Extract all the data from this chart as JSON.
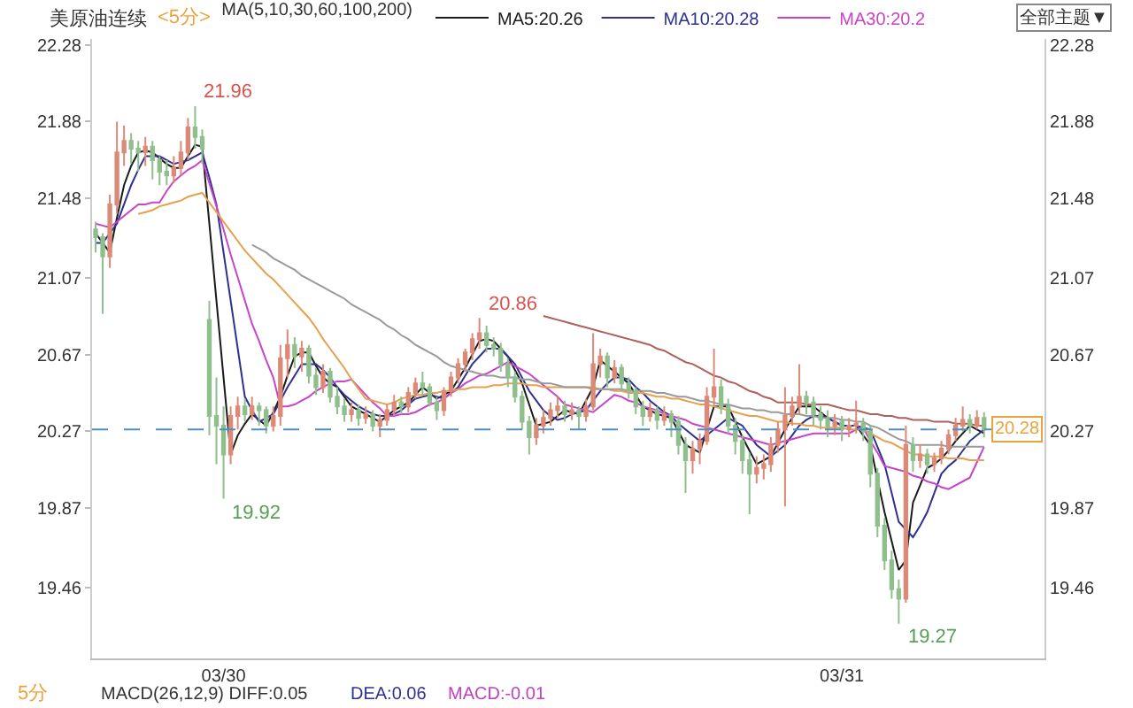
{
  "chart_data": {
    "type": "candlestick",
    "title": "美原油连续",
    "subtitle": "<5分>",
    "legend_title": "MA(5,10,30,60,100,200)",
    "categories": [
      null,
      null,
      null,
      null,
      null,
      null,
      null,
      null,
      null,
      null,
      null,
      null,
      null,
      null,
      null,
      null,
      null,
      null,
      "03/30",
      null,
      null,
      null,
      null,
      null,
      null,
      null,
      null,
      null,
      null,
      null,
      null,
      null,
      null,
      null,
      null,
      null,
      null,
      null,
      null,
      null,
      null,
      null,
      null,
      null,
      null,
      null,
      null,
      null,
      null,
      null,
      null,
      null,
      null,
      null,
      null,
      null,
      null,
      null,
      null,
      null,
      null,
      null,
      null,
      null,
      null,
      null,
      null,
      null,
      null,
      null,
      null,
      null,
      null,
      null,
      null,
      null,
      null,
      null,
      null,
      null,
      null,
      null,
      null,
      null,
      null,
      null,
      null,
      null,
      null,
      null,
      null,
      null,
      null,
      null,
      null,
      null,
      null,
      null,
      null,
      null,
      null,
      null,
      null,
      null,
      null,
      "03/31",
      null,
      null,
      null,
      null,
      null,
      null,
      null,
      null,
      null,
      null,
      null,
      null,
      null,
      null,
      null,
      null,
      null,
      null,
      null,
      null
    ],
    "ohlc": [
      [
        21.32,
        21.36,
        21.2,
        21.28
      ],
      [
        21.28,
        21.3,
        20.88,
        21.18
      ],
      [
        21.18,
        21.5,
        21.12,
        21.45
      ],
      [
        21.45,
        21.88,
        21.4,
        21.72
      ],
      [
        21.72,
        21.86,
        21.65,
        21.78
      ],
      [
        21.78,
        21.82,
        21.66,
        21.74
      ],
      [
        21.74,
        21.78,
        21.62,
        21.72
      ],
      [
        21.72,
        21.8,
        21.65,
        21.75
      ],
      [
        21.75,
        21.78,
        21.58,
        21.68
      ],
      [
        21.68,
        21.7,
        21.55,
        21.62
      ],
      [
        21.62,
        21.68,
        21.55,
        21.6
      ],
      [
        21.6,
        21.7,
        21.56,
        21.64
      ],
      [
        21.64,
        21.78,
        21.6,
        21.72
      ],
      [
        21.72,
        21.9,
        21.68,
        21.85
      ],
      [
        21.85,
        21.96,
        21.74,
        21.8
      ],
      [
        21.8,
        21.84,
        21.66,
        21.74
      ],
      [
        20.85,
        20.95,
        20.25,
        20.35
      ],
      [
        20.35,
        20.55,
        20.1,
        20.3
      ],
      [
        20.3,
        20.4,
        19.92,
        20.15
      ],
      [
        20.15,
        20.4,
        20.1,
        20.35
      ],
      [
        20.35,
        20.45,
        20.28,
        20.4
      ],
      [
        20.4,
        20.44,
        20.32,
        20.36
      ],
      [
        20.36,
        20.45,
        20.33,
        20.4
      ],
      [
        20.4,
        20.42,
        20.3,
        20.38
      ],
      [
        20.38,
        20.4,
        20.26,
        20.3
      ],
      [
        20.3,
        20.4,
        20.27,
        20.35
      ],
      [
        20.35,
        20.72,
        20.3,
        20.65
      ],
      [
        20.65,
        20.8,
        20.55,
        20.72
      ],
      [
        20.72,
        20.76,
        20.6,
        20.66
      ],
      [
        20.66,
        20.74,
        20.58,
        20.7
      ],
      [
        20.7,
        20.72,
        20.52,
        20.56
      ],
      [
        20.56,
        20.6,
        20.46,
        20.5
      ],
      [
        20.5,
        20.62,
        20.47,
        20.58
      ],
      [
        20.58,
        20.6,
        20.42,
        20.45
      ],
      [
        20.45,
        20.5,
        20.36,
        20.4
      ],
      [
        20.4,
        20.44,
        20.32,
        20.36
      ],
      [
        20.36,
        20.42,
        20.32,
        20.38
      ],
      [
        20.38,
        20.41,
        20.3,
        20.34
      ],
      [
        20.34,
        20.4,
        20.31,
        20.36
      ],
      [
        20.36,
        20.38,
        20.27,
        20.3
      ],
      [
        20.3,
        20.36,
        20.24,
        20.33
      ],
      [
        20.33,
        20.41,
        20.3,
        20.38
      ],
      [
        20.38,
        20.46,
        20.35,
        20.42
      ],
      [
        20.42,
        20.45,
        20.36,
        20.4
      ],
      [
        20.4,
        20.5,
        20.37,
        20.47
      ],
      [
        20.47,
        20.55,
        20.44,
        20.52
      ],
      [
        20.52,
        20.58,
        20.46,
        20.5
      ],
      [
        20.5,
        20.52,
        20.4,
        20.42
      ],
      [
        20.42,
        20.45,
        20.33,
        20.38
      ],
      [
        20.38,
        20.5,
        20.35,
        20.48
      ],
      [
        20.48,
        20.58,
        20.45,
        20.55
      ],
      [
        20.55,
        20.65,
        20.52,
        20.62
      ],
      [
        20.62,
        20.7,
        20.58,
        20.68
      ],
      [
        20.68,
        20.78,
        20.64,
        20.75
      ],
      [
        20.75,
        20.86,
        20.7,
        20.78
      ],
      [
        20.78,
        20.82,
        20.68,
        20.72
      ],
      [
        20.72,
        20.76,
        20.66,
        20.7
      ],
      [
        20.7,
        20.73,
        20.58,
        20.62
      ],
      [
        20.62,
        20.65,
        20.5,
        20.55
      ],
      [
        20.55,
        20.58,
        20.42,
        20.45
      ],
      [
        20.45,
        20.48,
        20.28,
        20.32
      ],
      [
        20.32,
        20.35,
        20.15,
        20.24
      ],
      [
        20.24,
        20.34,
        20.2,
        20.3
      ],
      [
        20.3,
        20.38,
        20.26,
        20.34
      ],
      [
        20.34,
        20.42,
        20.3,
        20.38
      ],
      [
        20.38,
        20.45,
        20.34,
        20.4
      ],
      [
        20.4,
        20.43,
        20.32,
        20.36
      ],
      [
        20.36,
        20.42,
        20.33,
        20.38
      ],
      [
        20.38,
        20.4,
        20.28,
        20.35
      ],
      [
        20.35,
        20.44,
        20.32,
        20.4
      ],
      [
        20.4,
        20.78,
        20.38,
        20.62
      ],
      [
        20.62,
        20.7,
        20.55,
        20.66
      ],
      [
        20.66,
        20.68,
        20.5,
        20.55
      ],
      [
        20.55,
        20.64,
        20.52,
        20.6
      ],
      [
        20.6,
        20.62,
        20.48,
        20.52
      ],
      [
        20.52,
        20.55,
        20.44,
        20.48
      ],
      [
        20.48,
        20.5,
        20.36,
        20.4
      ],
      [
        20.4,
        20.43,
        20.3,
        20.35
      ],
      [
        20.35,
        20.42,
        20.32,
        20.38
      ],
      [
        20.38,
        20.4,
        20.28,
        20.33
      ],
      [
        20.33,
        20.4,
        20.3,
        20.36
      ],
      [
        20.36,
        20.38,
        20.24,
        20.32
      ],
      [
        20.32,
        20.35,
        20.15,
        20.2
      ],
      [
        20.2,
        20.24,
        19.95,
        20.12
      ],
      [
        20.12,
        20.22,
        20.05,
        20.18
      ],
      [
        20.18,
        20.26,
        20.1,
        20.22
      ],
      [
        20.22,
        20.5,
        20.2,
        20.45
      ],
      [
        20.45,
        20.7,
        20.4,
        20.5
      ],
      [
        20.5,
        20.54,
        20.36,
        20.4
      ],
      [
        20.4,
        20.44,
        20.26,
        20.3
      ],
      [
        20.3,
        20.34,
        20.15,
        20.22
      ],
      [
        20.22,
        20.25,
        20.05,
        20.12
      ],
      [
        20.12,
        20.16,
        19.84,
        20.05
      ],
      [
        20.05,
        20.14,
        20.0,
        20.08
      ],
      [
        20.08,
        20.15,
        20.02,
        20.1
      ],
      [
        20.1,
        20.24,
        20.06,
        20.2
      ],
      [
        20.2,
        20.32,
        20.16,
        20.28
      ],
      [
        20.28,
        20.5,
        19.88,
        20.35
      ],
      [
        20.35,
        20.45,
        20.3,
        20.4
      ],
      [
        20.4,
        20.62,
        20.36,
        20.45
      ],
      [
        20.45,
        20.48,
        20.36,
        20.42
      ],
      [
        20.42,
        20.45,
        20.3,
        20.36
      ],
      [
        20.36,
        20.4,
        20.28,
        20.33
      ],
      [
        20.33,
        20.38,
        20.24,
        20.3
      ],
      [
        20.3,
        20.36,
        20.25,
        20.32
      ],
      [
        20.32,
        20.35,
        20.22,
        20.28
      ],
      [
        20.28,
        20.34,
        20.24,
        20.3
      ],
      [
        20.3,
        20.43,
        20.26,
        20.31
      ],
      [
        20.31,
        20.34,
        20.22,
        20.27
      ],
      [
        20.27,
        20.3,
        19.98,
        20.05
      ],
      [
        20.05,
        20.08,
        19.72,
        19.78
      ],
      [
        19.78,
        19.82,
        19.55,
        19.6
      ],
      [
        19.6,
        19.65,
        19.4,
        19.45
      ],
      [
        19.45,
        19.5,
        19.27,
        19.4
      ],
      [
        19.4,
        20.3,
        19.38,
        20.2
      ],
      [
        20.2,
        20.24,
        20.06,
        20.12
      ],
      [
        20.12,
        20.2,
        20.08,
        20.15
      ],
      [
        20.15,
        20.18,
        20.05,
        20.1
      ],
      [
        20.1,
        20.16,
        20.06,
        20.13
      ],
      [
        20.13,
        20.22,
        20.1,
        20.18
      ],
      [
        20.18,
        20.28,
        20.15,
        20.25
      ],
      [
        20.25,
        20.34,
        20.22,
        20.3
      ],
      [
        20.3,
        20.4,
        20.27,
        20.33
      ],
      [
        20.33,
        20.36,
        20.26,
        20.3
      ],
      [
        20.3,
        20.38,
        20.28,
        20.34
      ],
      [
        20.34,
        20.37,
        20.24,
        20.28
      ]
    ],
    "colors": [
      "#8fbf8c",
      "#8fbf8c",
      "#dc8a78",
      "#dc8a78",
      "#dc8a78",
      "#8fbf8c",
      "#8fbf8c",
      "#dc8a78",
      "#8fbf8c",
      "#8fbf8c",
      "#8fbf8c",
      "#dc8a78",
      "#dc8a78",
      "#dc8a78",
      "#8fbf8c",
      "#8fbf8c",
      "#8fbf8c",
      "#8fbf8c",
      "#8fbf8c",
      "#dc8a78",
      "#dc8a78",
      "#8fbf8c",
      "#dc8a78",
      "#8fbf8c",
      "#8fbf8c",
      "#dc8a78",
      "#dc8a78",
      "#dc8a78",
      "#8fbf8c",
      "#dc8a78",
      "#8fbf8c",
      "#8fbf8c",
      "#dc8a78",
      "#8fbf8c",
      "#8fbf8c",
      "#8fbf8c",
      "#dc8a78",
      "#8fbf8c",
      "#dc8a78",
      "#8fbf8c",
      "#dc8a78",
      "#dc8a78",
      "#dc8a78",
      "#8fbf8c",
      "#dc8a78",
      "#dc8a78",
      "#8fbf8c",
      "#8fbf8c",
      "#8fbf8c",
      "#dc8a78",
      "#dc8a78",
      "#dc8a78",
      "#dc8a78",
      "#dc8a78",
      "#dc8a78",
      "#8fbf8c",
      "#8fbf8c",
      "#8fbf8c",
      "#8fbf8c",
      "#8fbf8c",
      "#8fbf8c",
      "#8fbf8c",
      "#dc8a78",
      "#dc8a78",
      "#dc8a78",
      "#dc8a78",
      "#8fbf8c",
      "#dc8a78",
      "#8fbf8c",
      "#dc8a78",
      "#dc8a78",
      "#dc8a78",
      "#8fbf8c",
      "#dc8a78",
      "#8fbf8c",
      "#8fbf8c",
      "#8fbf8c",
      "#8fbf8c",
      "#dc8a78",
      "#8fbf8c",
      "#dc8a78",
      "#8fbf8c",
      "#8fbf8c",
      "#8fbf8c",
      "#dc8a78",
      "#dc8a78",
      "#dc8a78",
      "#dc8a78",
      "#8fbf8c",
      "#8fbf8c",
      "#8fbf8c",
      "#8fbf8c",
      "#8fbf8c",
      "#dc8a78",
      "#dc8a78",
      "#dc8a78",
      "#dc8a78",
      "#dc8a78",
      "#dc8a78",
      "#dc8a78",
      "#8fbf8c",
      "#8fbf8c",
      "#8fbf8c",
      "#8fbf8c",
      "#dc8a78",
      "#8fbf8c",
      "#dc8a78",
      "#dc8a78",
      "#8fbf8c",
      "#8fbf8c",
      "#8fbf8c",
      "#8fbf8c",
      "#8fbf8c",
      "#8fbf8c",
      "#dc8a78",
      "#8fbf8c",
      "#dc8a78",
      "#8fbf8c",
      "#dc8a78",
      "#dc8a78",
      "#dc8a78",
      "#dc8a78",
      "#dc8a78",
      "#8fbf8c",
      "#dc8a78",
      "#8fbf8c"
    ],
    "series": [
      {
        "type": "line",
        "name": "MA5:20.26",
        "color": "#1a1a1a",
        "values": [
          21.3,
          21.25,
          21.2,
          21.38,
          21.55,
          21.65,
          21.72,
          21.73,
          21.72,
          21.69,
          21.66,
          21.64,
          21.64,
          21.7,
          21.76,
          21.75,
          21.35,
          20.95,
          20.55,
          20.15,
          20.25,
          20.31,
          20.36,
          20.33,
          20.3,
          20.37,
          20.45,
          20.56,
          20.66,
          20.68,
          20.68,
          20.61,
          20.55,
          20.52,
          20.5,
          20.45,
          20.4,
          20.38,
          20.36,
          20.34,
          20.32,
          20.35,
          20.38,
          20.4,
          20.42,
          20.46,
          20.5,
          20.47,
          20.44,
          20.46,
          20.48,
          20.54,
          20.6,
          20.67,
          20.74,
          20.75,
          20.74,
          20.7,
          20.66,
          20.59,
          20.52,
          20.41,
          20.3,
          20.31,
          20.32,
          20.35,
          20.38,
          20.37,
          20.36,
          20.43,
          20.5,
          20.64,
          20.61,
          20.58,
          20.55,
          20.52,
          20.46,
          20.4,
          20.38,
          20.36,
          20.35,
          20.34,
          20.27,
          20.2,
          20.18,
          20.16,
          20.28,
          20.4,
          20.4,
          20.4,
          20.32,
          20.24,
          20.17,
          20.1,
          20.12,
          20.14,
          20.21,
          20.28,
          20.34,
          20.4,
          20.4,
          20.4,
          20.37,
          20.34,
          20.32,
          20.3,
          20.3,
          20.3,
          20.25,
          20.2,
          20.02,
          19.85,
          19.7,
          19.55,
          19.6,
          19.9,
          19.99,
          20.08,
          20.1,
          20.13,
          20.17,
          20.22,
          20.26,
          20.3,
          20.28,
          20.26
        ]
      },
      {
        "type": "line",
        "name": "MA10:20.28",
        "color": "#2e3192",
        "values": [
          21.25,
          21.25,
          21.3,
          21.35,
          21.45,
          21.55,
          21.63,
          21.7,
          21.7,
          21.7,
          21.68,
          21.66,
          21.67,
          21.68,
          21.7,
          21.72,
          21.59,
          21.45,
          21.2,
          20.95,
          20.7,
          20.45,
          20.38,
          20.32,
          20.34,
          20.36,
          20.43,
          20.5,
          20.56,
          20.62,
          20.62,
          20.62,
          20.59,
          20.55,
          20.5,
          20.46,
          20.43,
          20.4,
          20.38,
          20.36,
          20.35,
          20.35,
          20.36,
          20.38,
          20.41,
          20.44,
          20.45,
          20.46,
          20.45,
          20.44,
          20.47,
          20.5,
          20.56,
          20.62,
          20.66,
          20.7,
          20.7,
          20.7,
          20.66,
          20.62,
          20.55,
          20.48,
          20.43,
          20.38,
          20.35,
          20.33,
          20.34,
          20.36,
          20.37,
          20.38,
          20.43,
          20.48,
          20.52,
          20.55,
          20.55,
          20.54,
          20.5,
          20.47,
          20.43,
          20.4,
          20.37,
          20.35,
          20.31,
          20.28,
          20.25,
          20.22,
          20.25,
          20.28,
          20.31,
          20.34,
          20.32,
          20.3,
          20.25,
          20.2,
          20.17,
          20.14,
          20.17,
          20.2,
          20.25,
          20.3,
          20.33,
          20.35,
          20.35,
          20.34,
          20.32,
          20.3,
          20.3,
          20.3,
          20.29,
          20.28,
          20.19,
          20.1,
          19.95,
          19.8,
          19.76,
          19.72,
          19.78,
          19.85,
          19.95,
          20.05,
          20.09,
          20.12,
          20.17,
          20.22,
          20.25,
          20.28
        ]
      },
      {
        "type": "line",
        "name": "MA30:20.2",
        "color": "#c844c8",
        "values": [
          21.35,
          21.34,
          21.33,
          21.36,
          21.39,
          21.42,
          21.45,
          21.45,
          21.46,
          21.46,
          21.52,
          21.57,
          21.6,
          21.63,
          21.65,
          21.68,
          21.56,
          21.44,
          21.32,
          21.19,
          21.07,
          20.95,
          20.83,
          20.74,
          20.64,
          20.55,
          20.4,
          20.4,
          20.41,
          20.43,
          20.45,
          20.48,
          20.5,
          20.52,
          20.53,
          20.53,
          20.54,
          20.5,
          20.46,
          20.42,
          20.39,
          20.35,
          20.35,
          20.36,
          20.36,
          20.37,
          20.39,
          20.41,
          20.42,
          20.44,
          20.47,
          20.49,
          20.52,
          20.54,
          20.56,
          20.57,
          20.59,
          20.61,
          20.63,
          20.61,
          20.59,
          20.57,
          20.54,
          20.51,
          20.48,
          20.45,
          20.41,
          20.4,
          20.39,
          20.38,
          20.37,
          20.4,
          20.43,
          20.46,
          20.45,
          20.43,
          20.42,
          20.4,
          20.39,
          20.38,
          20.36,
          20.35,
          20.34,
          20.33,
          20.31,
          20.3,
          20.29,
          20.28,
          20.27,
          20.26,
          20.25,
          20.24,
          20.23,
          20.22,
          20.21,
          20.2,
          20.21,
          20.22,
          20.23,
          20.24,
          20.25,
          20.26,
          20.26,
          20.26,
          20.26,
          20.26,
          20.26,
          20.28,
          20.29,
          20.22,
          20.16,
          20.09,
          20.08,
          20.07,
          20.06,
          20.04,
          20.03,
          20.01,
          20.0,
          19.98,
          19.97,
          19.99,
          20.01,
          20.03,
          20.11,
          20.19
        ]
      },
      {
        "type": "line",
        "color": "#e8a050",
        "values": [
          null,
          null,
          null,
          null,
          null,
          null,
          21.4,
          21.41,
          21.42,
          21.44,
          21.45,
          21.46,
          21.47,
          21.49,
          21.5,
          21.51,
          21.46,
          21.41,
          21.36,
          21.31,
          21.26,
          21.21,
          21.17,
          21.13,
          21.09,
          21.06,
          21.02,
          20.98,
          20.94,
          20.9,
          20.86,
          20.81,
          20.75,
          20.7,
          20.65,
          20.6,
          20.54,
          20.49,
          20.44,
          20.43,
          20.42,
          20.41,
          20.42,
          20.44,
          20.45,
          20.46,
          20.46,
          20.47,
          20.47,
          20.48,
          20.48,
          20.49,
          20.49,
          20.5,
          20.5,
          20.5,
          20.51,
          20.51,
          20.52,
          20.52,
          20.52,
          20.51,
          20.51,
          20.5,
          20.5,
          20.5,
          20.5,
          20.5,
          20.5,
          20.5,
          20.5,
          20.49,
          20.49,
          20.48,
          20.48,
          20.47,
          20.47,
          20.47,
          20.46,
          20.45,
          20.45,
          20.44,
          20.44,
          20.43,
          20.42,
          20.41,
          20.41,
          20.4,
          20.39,
          20.38,
          20.37,
          20.36,
          20.35,
          20.35,
          20.34,
          20.33,
          20.32,
          20.32,
          20.31,
          20.31,
          20.3,
          20.3,
          20.29,
          20.29,
          20.29,
          20.29,
          20.28,
          20.28,
          20.28,
          20.26,
          20.24,
          20.22,
          20.21,
          20.19,
          20.17,
          20.15,
          20.15,
          20.14,
          20.14,
          20.14,
          20.13,
          20.13,
          20.13,
          20.12,
          20.12,
          20.12
        ]
      },
      {
        "type": "line",
        "color": "#9a9a9a",
        "values": [
          null,
          null,
          null,
          null,
          null,
          null,
          null,
          null,
          null,
          null,
          null,
          null,
          null,
          null,
          null,
          null,
          null,
          null,
          null,
          null,
          null,
          null,
          21.24,
          21.22,
          21.2,
          21.17,
          21.15,
          21.13,
          21.11,
          21.08,
          21.06,
          21.04,
          21.02,
          21.0,
          20.98,
          20.96,
          20.93,
          20.91,
          20.89,
          20.87,
          20.85,
          20.82,
          20.8,
          20.77,
          20.75,
          20.72,
          20.7,
          20.68,
          20.66,
          20.63,
          20.61,
          20.6,
          20.59,
          20.58,
          20.57,
          20.56,
          20.56,
          20.55,
          20.55,
          20.55,
          20.54,
          20.54,
          20.53,
          20.52,
          20.52,
          20.51,
          20.5,
          20.5,
          20.5,
          20.5,
          20.49,
          20.49,
          20.49,
          20.49,
          20.49,
          20.48,
          20.48,
          20.48,
          20.48,
          20.47,
          20.47,
          20.46,
          20.45,
          20.45,
          20.44,
          20.43,
          20.43,
          20.42,
          20.41,
          20.41,
          20.4,
          20.39,
          20.39,
          20.38,
          20.38,
          20.37,
          20.37,
          20.36,
          20.36,
          20.36,
          20.35,
          20.35,
          20.34,
          20.34,
          20.34,
          20.33,
          20.33,
          20.32,
          20.32,
          20.3,
          20.29,
          20.27,
          20.25,
          20.23,
          20.22,
          20.2,
          20.2,
          20.2,
          20.2,
          20.2,
          20.19,
          20.19,
          20.19,
          20.19,
          20.19,
          20.19
        ]
      },
      {
        "type": "line",
        "color": "#b0605a",
        "values": [
          null,
          null,
          null,
          null,
          null,
          null,
          null,
          null,
          null,
          null,
          null,
          null,
          null,
          null,
          null,
          null,
          null,
          null,
          null,
          null,
          null,
          null,
          null,
          null,
          null,
          null,
          null,
          null,
          null,
          null,
          null,
          null,
          null,
          null,
          null,
          null,
          null,
          null,
          null,
          null,
          null,
          null,
          null,
          null,
          null,
          null,
          null,
          null,
          null,
          null,
          null,
          null,
          null,
          null,
          null,
          null,
          null,
          null,
          null,
          null,
          null,
          null,
          null,
          20.87,
          20.86,
          20.85,
          20.84,
          20.83,
          20.82,
          20.81,
          20.8,
          20.79,
          20.78,
          20.77,
          20.76,
          20.75,
          20.74,
          20.73,
          20.72,
          20.7,
          20.69,
          20.67,
          20.65,
          20.63,
          20.62,
          20.6,
          20.58,
          20.56,
          20.55,
          20.53,
          20.52,
          20.5,
          20.48,
          20.47,
          20.45,
          20.44,
          20.42,
          20.42,
          20.42,
          20.42,
          20.41,
          20.41,
          20.41,
          20.41,
          20.4,
          20.39,
          20.38,
          20.38,
          20.37,
          20.36,
          20.36,
          20.35,
          20.35,
          20.34,
          20.34,
          20.33,
          20.33,
          20.33,
          20.32,
          20.32,
          20.32,
          20.31,
          20.31,
          20.31,
          20.3,
          20.3
        ]
      }
    ],
    "ylim": [
      19.09,
      22.31
    ],
    "yticks": [
      22.28,
      21.88,
      21.48,
      21.07,
      20.67,
      20.27,
      19.87,
      19.46
    ],
    "y2lim": [
      19.09,
      22.31
    ],
    "y2ticks": [
      22.28,
      21.88,
      21.48,
      21.07,
      20.67,
      20.27,
      19.87,
      19.46
    ],
    "ref_lines": [
      {
        "axis": "y",
        "value": 20.28,
        "label": "20.28",
        "color": "#4f8fc0",
        "line_style": "dashed"
      }
    ],
    "annotations": [
      "21.96",
      "19.92",
      "20.86",
      "19.27",
      "全部主题▼",
      "5分",
      "MACD(26,12,9) DIFF:0.05",
      "DEA:0.06",
      "MACD:-0.01"
    ],
    "legend": "top"
  }
}
